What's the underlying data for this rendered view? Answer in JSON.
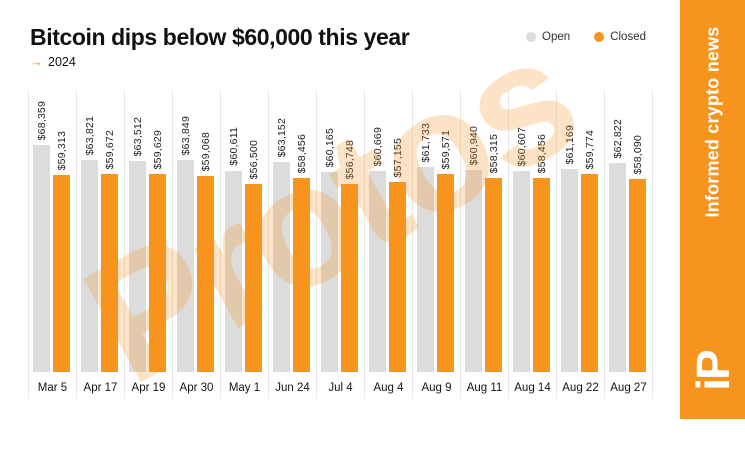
{
  "title": "Bitcoin dips below $60,000 this year",
  "subtitle": {
    "arrow": "→",
    "year": "2024"
  },
  "legend": [
    {
      "label": "Open",
      "color": "#DCDCDC"
    },
    {
      "label": "Closed",
      "color": "#F7941E"
    }
  ],
  "watermark": "Protos",
  "sidebar": {
    "tagline": "Informed crypto news",
    "logo": "iP",
    "color": "#F7941E"
  },
  "chart_data": {
    "type": "bar",
    "title": "Bitcoin dips below $60,000 this year",
    "subtitle": "2024",
    "categories": [
      "Mar 5",
      "Apr 17",
      "Apr 19",
      "Apr 30",
      "May 1",
      "Jun 24",
      "Jul 4",
      "Aug 4",
      "Aug 9",
      "Aug 11",
      "Aug 14",
      "Aug 22",
      "Aug 27"
    ],
    "series": [
      {
        "name": "Open",
        "color": "#DCDCDC",
        "values": [
          68359,
          63821,
          63512,
          63849,
          60611,
          63152,
          60165,
          60669,
          61733,
          60940,
          60607,
          61169,
          62822
        ],
        "labels": [
          "$68,359",
          "$63,821",
          "$63,512",
          "$63,849",
          "$60,611",
          "$63,152",
          "$60,165",
          "$60,669",
          "$61,733",
          "$60,940",
          "$60,607",
          "$61,169",
          "$62,822"
        ]
      },
      {
        "name": "Closed",
        "color": "#F7941E",
        "values": [
          59313,
          59672,
          59629,
          59068,
          56500,
          58456,
          56748,
          57155,
          59571,
          58315,
          58456,
          59774,
          58090
        ],
        "labels": [
          "$59,313",
          "$59,672",
          "$59,629",
          "$59,068",
          "$56,500",
          "$58,456",
          "$56,748",
          "$57,155",
          "$59,571",
          "$58,315",
          "$58,456",
          "$59,774",
          "$58,090"
        ]
      }
    ],
    "ylim": [
      0,
      68359
    ],
    "y_axis_shown": false,
    "grid": "vertical-group-separators",
    "legend_position": "top-right",
    "value_labels_rotation": -90
  }
}
